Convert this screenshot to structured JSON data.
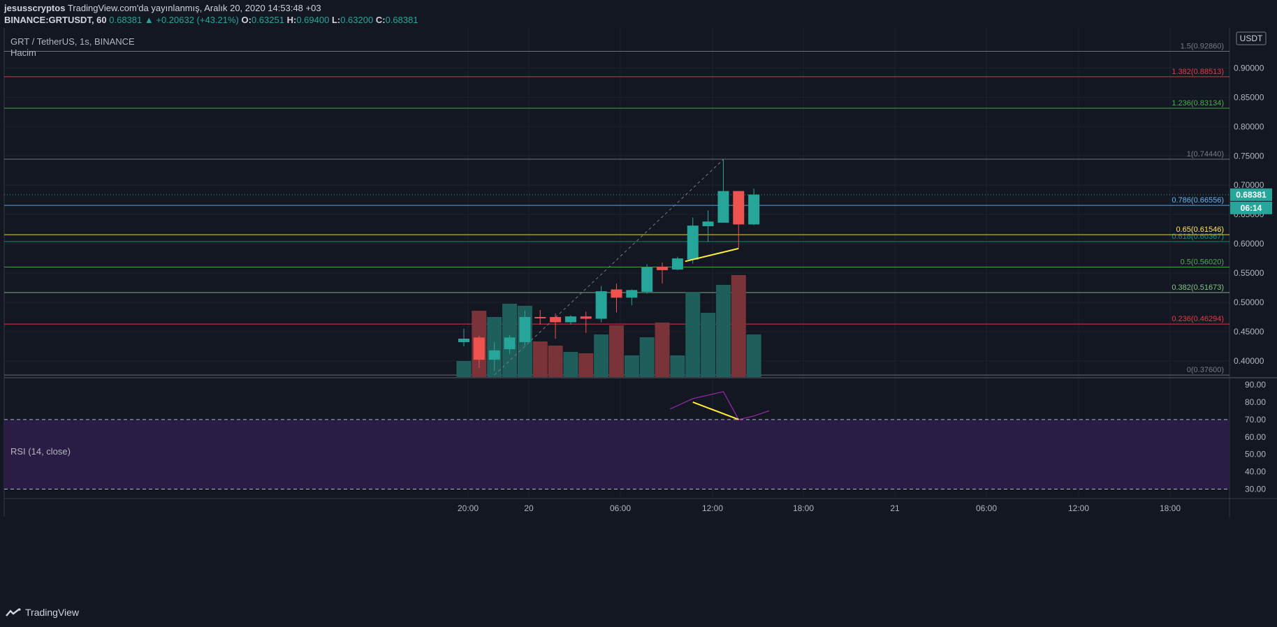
{
  "header": {
    "author": "jesusscryptos",
    "published": "TradingView.com'da yayınlanmış, Aralık 20, 2020 14:53:48 +03",
    "symbol_line": "BINANCE:GRTUSDT, 60",
    "last": "0.68381",
    "change": "▲ +0.20632 (+43.21%)",
    "o_label": "O:",
    "o": "0.63251",
    "h_label": "H:",
    "h": "0.69400",
    "l_label": "L:",
    "l": "0.63200",
    "c_label": "C:",
    "c": "0.68381"
  },
  "pane_titles": {
    "symbol": "GRT / TetherUS, 1s, BINANCE",
    "volume": "Hacim",
    "rsi": "RSI (14, close)",
    "currency": "USDT"
  },
  "price_badge": {
    "value": "0.68381",
    "countdown": "06:14"
  },
  "footer": {
    "brand": "TradingView"
  },
  "colors": {
    "background": "#131722",
    "up": "#26a69a",
    "down": "#ef5350",
    "vol_up": "#1f5f5b",
    "vol_down": "#7a3338",
    "rsi_band": "#2a1d45",
    "rsi_line": "#9c27b0",
    "annotation": "#ffeb3b"
  },
  "chart_data": [
    {
      "type": "candlestick",
      "x_ticks": [
        "20:00",
        "20",
        "06:00",
        "12:00",
        "18:00",
        "21",
        "06:00",
        "12:00",
        "18:00"
      ],
      "y_ticks": [
        "0.40000",
        "0.45000",
        "0.50000",
        "0.55000",
        "0.60000",
        "0.65000",
        "0.70000",
        "0.75000",
        "0.80000",
        "0.85000",
        "0.90000"
      ],
      "y_range": [
        0.3725,
        0.9625
      ],
      "candles": [
        {
          "o": 0.432,
          "h": 0.455,
          "l": 0.425,
          "c": 0.438
        },
        {
          "o": 0.44,
          "h": 0.443,
          "l": 0.388,
          "c": 0.402
        },
        {
          "o": 0.402,
          "h": 0.432,
          "l": 0.383,
          "c": 0.418
        },
        {
          "o": 0.42,
          "h": 0.444,
          "l": 0.412,
          "c": 0.44
        },
        {
          "o": 0.432,
          "h": 0.486,
          "l": 0.426,
          "c": 0.475
        },
        {
          "o": 0.475,
          "h": 0.487,
          "l": 0.462,
          "c": 0.473
        },
        {
          "o": 0.475,
          "h": 0.481,
          "l": 0.438,
          "c": 0.466
        },
        {
          "o": 0.466,
          "h": 0.478,
          "l": 0.462,
          "c": 0.476
        },
        {
          "o": 0.476,
          "h": 0.484,
          "l": 0.448,
          "c": 0.472
        },
        {
          "o": 0.472,
          "h": 0.528,
          "l": 0.466,
          "c": 0.519
        },
        {
          "o": 0.522,
          "h": 0.532,
          "l": 0.483,
          "c": 0.508
        },
        {
          "o": 0.508,
          "h": 0.522,
          "l": 0.495,
          "c": 0.521
        },
        {
          "o": 0.518,
          "h": 0.565,
          "l": 0.515,
          "c": 0.56
        },
        {
          "o": 0.561,
          "h": 0.568,
          "l": 0.532,
          "c": 0.555
        },
        {
          "o": 0.556,
          "h": 0.578,
          "l": 0.555,
          "c": 0.575
        },
        {
          "o": 0.573,
          "h": 0.645,
          "l": 0.566,
          "c": 0.631
        },
        {
          "o": 0.63,
          "h": 0.657,
          "l": 0.603,
          "c": 0.638
        },
        {
          "o": 0.636,
          "h": 0.744,
          "l": 0.636,
          "c": 0.69
        },
        {
          "o": 0.69,
          "h": 0.69,
          "l": 0.593,
          "c": 0.633
        },
        {
          "o": 0.633,
          "h": 0.694,
          "l": 0.632,
          "c": 0.684
        }
      ],
      "volume": [
        {
          "v": 23,
          "dir": "up"
        },
        {
          "v": 95,
          "dir": "down"
        },
        {
          "v": 86,
          "dir": "up"
        },
        {
          "v": 105,
          "dir": "up"
        },
        {
          "v": 102,
          "dir": "up"
        },
        {
          "v": 51,
          "dir": "down"
        },
        {
          "v": 45,
          "dir": "down"
        },
        {
          "v": 36,
          "dir": "up"
        },
        {
          "v": 34,
          "dir": "down"
        },
        {
          "v": 61,
          "dir": "up"
        },
        {
          "v": 74,
          "dir": "down"
        },
        {
          "v": 31,
          "dir": "up"
        },
        {
          "v": 57,
          "dir": "up"
        },
        {
          "v": 78,
          "dir": "down"
        },
        {
          "v": 31,
          "dir": "up"
        },
        {
          "v": 122,
          "dir": "up"
        },
        {
          "v": 92,
          "dir": "up"
        },
        {
          "v": 132,
          "dir": "up"
        },
        {
          "v": 146,
          "dir": "down"
        },
        {
          "v": 61,
          "dir": "up"
        }
      ],
      "current_price": 0.68381,
      "fib_levels": [
        {
          "label": "0",
          "price": 0.376,
          "text": "0(0.37600)",
          "color": "#787b86"
        },
        {
          "label": "0.236",
          "price": 0.46294,
          "text": "0.236(0.46294)",
          "color": "#f23645"
        },
        {
          "label": "0.382",
          "price": 0.51673,
          "text": "0.382(0.51673)",
          "color": "#81c784"
        },
        {
          "label": "0.5",
          "price": 0.5602,
          "text": "0.5(0.56020)",
          "color": "#4caf50"
        },
        {
          "label": "0.618",
          "price": 0.60367,
          "text": "0.618(0.60367)",
          "color": "#089981"
        },
        {
          "label": "0.65",
          "price": 0.61546,
          "text": "0.65(0.61546)",
          "color": "#ffeb3b"
        },
        {
          "label": "0.786",
          "price": 0.66556,
          "text": "0.786(0.66556)",
          "color": "#64b5f6"
        },
        {
          "label": "1",
          "price": 0.7444,
          "text": "1(0.74440)",
          "color": "#787b86"
        },
        {
          "label": "1.236",
          "price": 0.83134,
          "text": "1.236(0.83134)",
          "color": "#4caf50"
        },
        {
          "label": "1.382",
          "price": 0.88513,
          "text": "1.382(0.88513)",
          "color": "#f23645"
        },
        {
          "label": "1.5",
          "price": 0.9286,
          "text": "1.5(0.92860)",
          "color": "#787b86"
        }
      ],
      "price_trendline": [
        {
          "candle": 14.5,
          "price": 0.57
        },
        {
          "candle": 18.0,
          "price": 0.592
        }
      ],
      "fib_anchor_line": [
        {
          "candle": 2.0,
          "price": 0.376
        },
        {
          "candle": 17.0,
          "price": 0.744
        }
      ]
    },
    {
      "type": "line",
      "name": "RSI (14, close)",
      "y_ticks": [
        "30.00",
        "40.00",
        "50.00",
        "60.00",
        "70.00",
        "80.00",
        "90.00"
      ],
      "y_range": [
        25,
        92
      ],
      "band": [
        30,
        70
      ],
      "points": [
        {
          "candle": 13.5,
          "v": 76
        },
        {
          "candle": 15.0,
          "v": 82
        },
        {
          "candle": 16.0,
          "v": 84
        },
        {
          "candle": 17.0,
          "v": 86
        },
        {
          "candle": 18.0,
          "v": 70
        },
        {
          "candle": 19.0,
          "v": 72
        },
        {
          "candle": 20.0,
          "v": 75
        }
      ],
      "trendline": [
        {
          "candle": 15.0,
          "v": 80
        },
        {
          "candle": 18.0,
          "v": 70
        }
      ]
    }
  ]
}
